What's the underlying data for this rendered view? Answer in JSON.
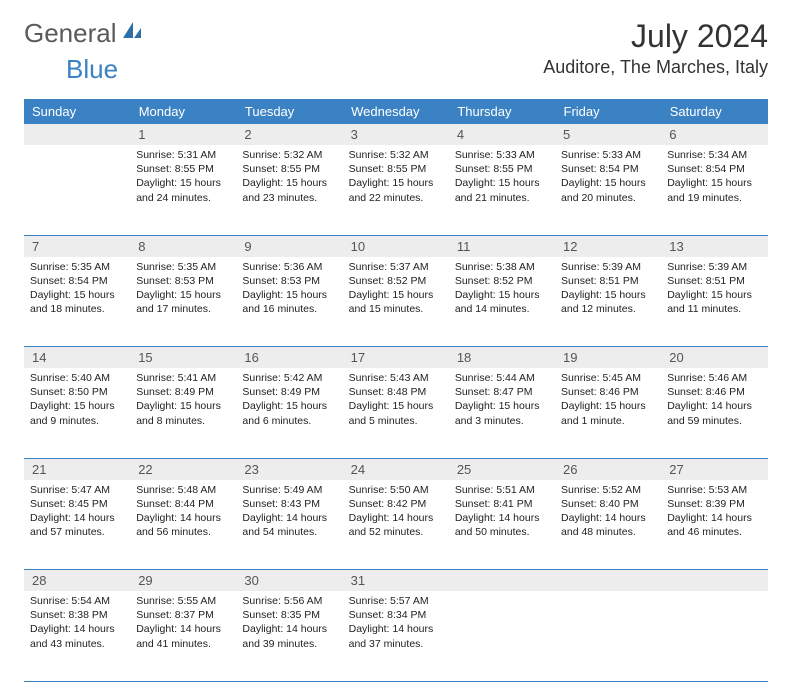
{
  "brand": {
    "part1": "General",
    "part2": "Blue"
  },
  "header": {
    "month": "July 2024",
    "location": "Auditore, The Marches, Italy"
  },
  "colors": {
    "header_bg": "#3b82c4",
    "header_fg": "#ffffff",
    "daynum_bg": "#ededed",
    "border": "#3b82c4"
  },
  "daysOfWeek": [
    "Sunday",
    "Monday",
    "Tuesday",
    "Wednesday",
    "Thursday",
    "Friday",
    "Saturday"
  ],
  "weeks": [
    {
      "nums": [
        "",
        "1",
        "2",
        "3",
        "4",
        "5",
        "6"
      ],
      "cells": [
        null,
        {
          "sunrise": "Sunrise: 5:31 AM",
          "sunset": "Sunset: 8:55 PM",
          "day1": "Daylight: 15 hours",
          "day2": "and 24 minutes."
        },
        {
          "sunrise": "Sunrise: 5:32 AM",
          "sunset": "Sunset: 8:55 PM",
          "day1": "Daylight: 15 hours",
          "day2": "and 23 minutes."
        },
        {
          "sunrise": "Sunrise: 5:32 AM",
          "sunset": "Sunset: 8:55 PM",
          "day1": "Daylight: 15 hours",
          "day2": "and 22 minutes."
        },
        {
          "sunrise": "Sunrise: 5:33 AM",
          "sunset": "Sunset: 8:55 PM",
          "day1": "Daylight: 15 hours",
          "day2": "and 21 minutes."
        },
        {
          "sunrise": "Sunrise: 5:33 AM",
          "sunset": "Sunset: 8:54 PM",
          "day1": "Daylight: 15 hours",
          "day2": "and 20 minutes."
        },
        {
          "sunrise": "Sunrise: 5:34 AM",
          "sunset": "Sunset: 8:54 PM",
          "day1": "Daylight: 15 hours",
          "day2": "and 19 minutes."
        }
      ]
    },
    {
      "nums": [
        "7",
        "8",
        "9",
        "10",
        "11",
        "12",
        "13"
      ],
      "cells": [
        {
          "sunrise": "Sunrise: 5:35 AM",
          "sunset": "Sunset: 8:54 PM",
          "day1": "Daylight: 15 hours",
          "day2": "and 18 minutes."
        },
        {
          "sunrise": "Sunrise: 5:35 AM",
          "sunset": "Sunset: 8:53 PM",
          "day1": "Daylight: 15 hours",
          "day2": "and 17 minutes."
        },
        {
          "sunrise": "Sunrise: 5:36 AM",
          "sunset": "Sunset: 8:53 PM",
          "day1": "Daylight: 15 hours",
          "day2": "and 16 minutes."
        },
        {
          "sunrise": "Sunrise: 5:37 AM",
          "sunset": "Sunset: 8:52 PM",
          "day1": "Daylight: 15 hours",
          "day2": "and 15 minutes."
        },
        {
          "sunrise": "Sunrise: 5:38 AM",
          "sunset": "Sunset: 8:52 PM",
          "day1": "Daylight: 15 hours",
          "day2": "and 14 minutes."
        },
        {
          "sunrise": "Sunrise: 5:39 AM",
          "sunset": "Sunset: 8:51 PM",
          "day1": "Daylight: 15 hours",
          "day2": "and 12 minutes."
        },
        {
          "sunrise": "Sunrise: 5:39 AM",
          "sunset": "Sunset: 8:51 PM",
          "day1": "Daylight: 15 hours",
          "day2": "and 11 minutes."
        }
      ]
    },
    {
      "nums": [
        "14",
        "15",
        "16",
        "17",
        "18",
        "19",
        "20"
      ],
      "cells": [
        {
          "sunrise": "Sunrise: 5:40 AM",
          "sunset": "Sunset: 8:50 PM",
          "day1": "Daylight: 15 hours",
          "day2": "and 9 minutes."
        },
        {
          "sunrise": "Sunrise: 5:41 AM",
          "sunset": "Sunset: 8:49 PM",
          "day1": "Daylight: 15 hours",
          "day2": "and 8 minutes."
        },
        {
          "sunrise": "Sunrise: 5:42 AM",
          "sunset": "Sunset: 8:49 PM",
          "day1": "Daylight: 15 hours",
          "day2": "and 6 minutes."
        },
        {
          "sunrise": "Sunrise: 5:43 AM",
          "sunset": "Sunset: 8:48 PM",
          "day1": "Daylight: 15 hours",
          "day2": "and 5 minutes."
        },
        {
          "sunrise": "Sunrise: 5:44 AM",
          "sunset": "Sunset: 8:47 PM",
          "day1": "Daylight: 15 hours",
          "day2": "and 3 minutes."
        },
        {
          "sunrise": "Sunrise: 5:45 AM",
          "sunset": "Sunset: 8:46 PM",
          "day1": "Daylight: 15 hours",
          "day2": "and 1 minute."
        },
        {
          "sunrise": "Sunrise: 5:46 AM",
          "sunset": "Sunset: 8:46 PM",
          "day1": "Daylight: 14 hours",
          "day2": "and 59 minutes."
        }
      ]
    },
    {
      "nums": [
        "21",
        "22",
        "23",
        "24",
        "25",
        "26",
        "27"
      ],
      "cells": [
        {
          "sunrise": "Sunrise: 5:47 AM",
          "sunset": "Sunset: 8:45 PM",
          "day1": "Daylight: 14 hours",
          "day2": "and 57 minutes."
        },
        {
          "sunrise": "Sunrise: 5:48 AM",
          "sunset": "Sunset: 8:44 PM",
          "day1": "Daylight: 14 hours",
          "day2": "and 56 minutes."
        },
        {
          "sunrise": "Sunrise: 5:49 AM",
          "sunset": "Sunset: 8:43 PM",
          "day1": "Daylight: 14 hours",
          "day2": "and 54 minutes."
        },
        {
          "sunrise": "Sunrise: 5:50 AM",
          "sunset": "Sunset: 8:42 PM",
          "day1": "Daylight: 14 hours",
          "day2": "and 52 minutes."
        },
        {
          "sunrise": "Sunrise: 5:51 AM",
          "sunset": "Sunset: 8:41 PM",
          "day1": "Daylight: 14 hours",
          "day2": "and 50 minutes."
        },
        {
          "sunrise": "Sunrise: 5:52 AM",
          "sunset": "Sunset: 8:40 PM",
          "day1": "Daylight: 14 hours",
          "day2": "and 48 minutes."
        },
        {
          "sunrise": "Sunrise: 5:53 AM",
          "sunset": "Sunset: 8:39 PM",
          "day1": "Daylight: 14 hours",
          "day2": "and 46 minutes."
        }
      ]
    },
    {
      "nums": [
        "28",
        "29",
        "30",
        "31",
        "",
        "",
        ""
      ],
      "cells": [
        {
          "sunrise": "Sunrise: 5:54 AM",
          "sunset": "Sunset: 8:38 PM",
          "day1": "Daylight: 14 hours",
          "day2": "and 43 minutes."
        },
        {
          "sunrise": "Sunrise: 5:55 AM",
          "sunset": "Sunset: 8:37 PM",
          "day1": "Daylight: 14 hours",
          "day2": "and 41 minutes."
        },
        {
          "sunrise": "Sunrise: 5:56 AM",
          "sunset": "Sunset: 8:35 PM",
          "day1": "Daylight: 14 hours",
          "day2": "and 39 minutes."
        },
        {
          "sunrise": "Sunrise: 5:57 AM",
          "sunset": "Sunset: 8:34 PM",
          "day1": "Daylight: 14 hours",
          "day2": "and 37 minutes."
        },
        null,
        null,
        null
      ]
    }
  ]
}
